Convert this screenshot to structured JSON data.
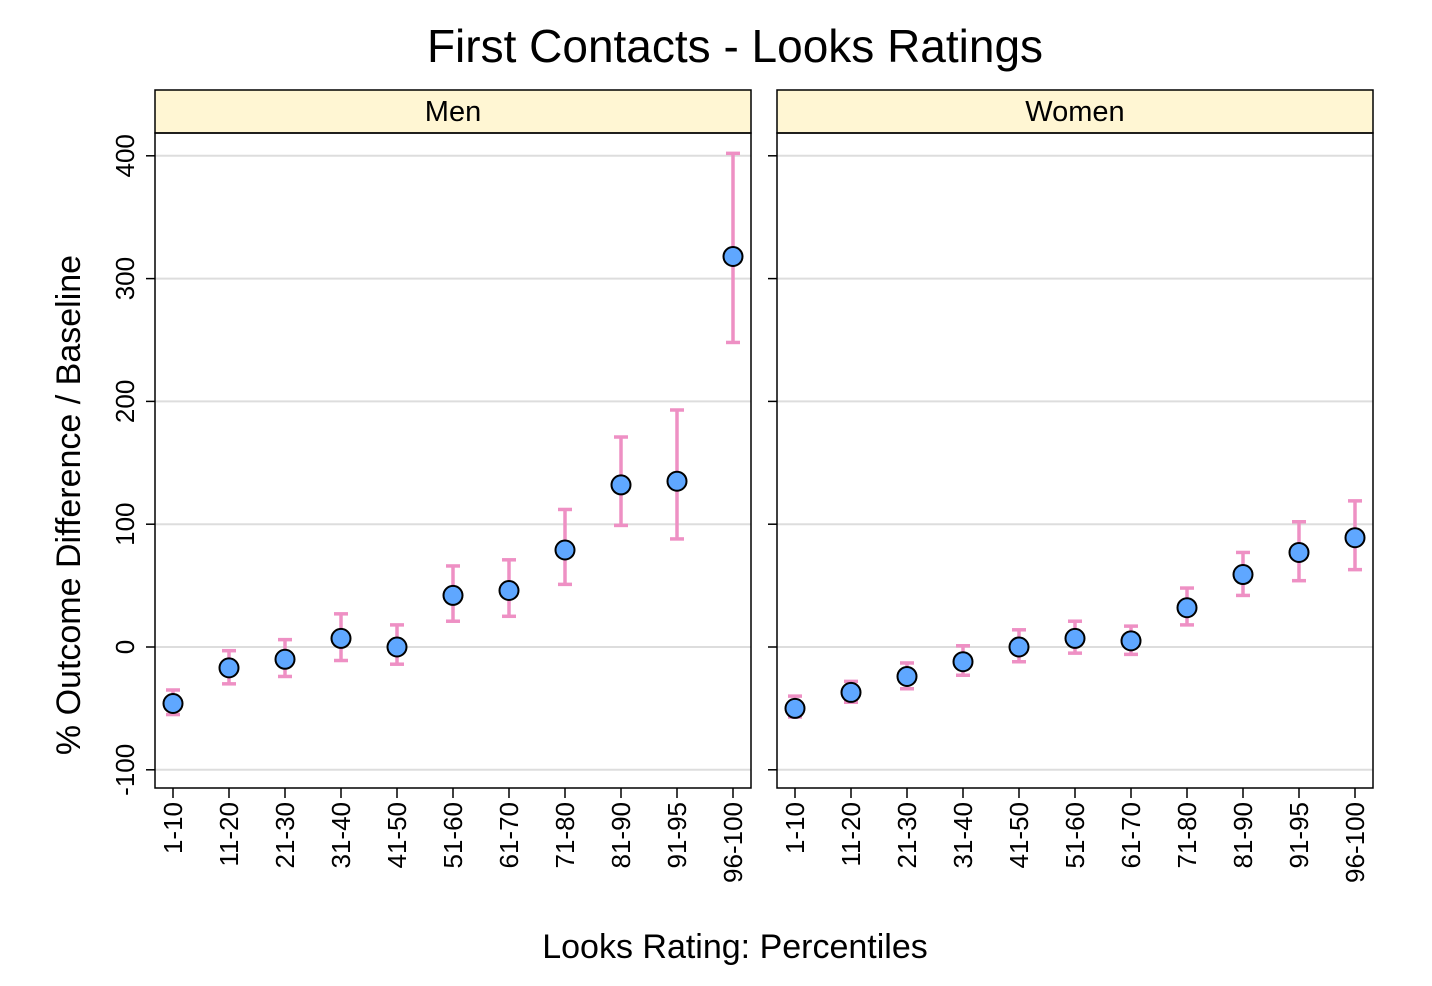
{
  "chart_data": {
    "type": "scatter",
    "title": "First Contacts - Looks Ratings",
    "xlabel": "Looks Rating: Percentiles",
    "ylabel": "% Outcome Difference / Baseline",
    "ylim": [
      -115,
      415
    ],
    "yticks": [
      -100,
      0,
      100,
      200,
      300,
      400
    ],
    "grid": true,
    "categories": [
      "1-10",
      "11-20",
      "21-30",
      "31-40",
      "41-50",
      "51-60",
      "61-70",
      "71-80",
      "81-90",
      "91-95",
      "96-100"
    ],
    "panels": [
      {
        "name": "Men",
        "values": [
          -46,
          -17,
          -10,
          7,
          0,
          42,
          46,
          79,
          132,
          135,
          318
        ],
        "lower": [
          -55,
          -30,
          -24,
          -11,
          -14,
          21,
          25,
          51,
          99,
          88,
          248
        ],
        "upper": [
          -35,
          -3,
          6,
          27,
          18,
          66,
          71,
          112,
          171,
          193,
          402
        ]
      },
      {
        "name": "Women",
        "values": [
          -50,
          -37,
          -24,
          -12,
          0,
          7,
          5,
          32,
          59,
          77,
          89
        ],
        "lower": [
          -57,
          -45,
          -34,
          -23,
          -12,
          -5,
          -6,
          18,
          42,
          54,
          63
        ],
        "upper": [
          -40,
          -28,
          -13,
          1,
          14,
          21,
          17,
          48,
          77,
          102,
          119
        ]
      }
    ],
    "colors": {
      "point_fill": "#5fa7ff",
      "point_stroke": "#000000",
      "error_bar": "#ee90c4",
      "strip_fill": "#fff6d3",
      "grid": "#dddddd"
    }
  }
}
